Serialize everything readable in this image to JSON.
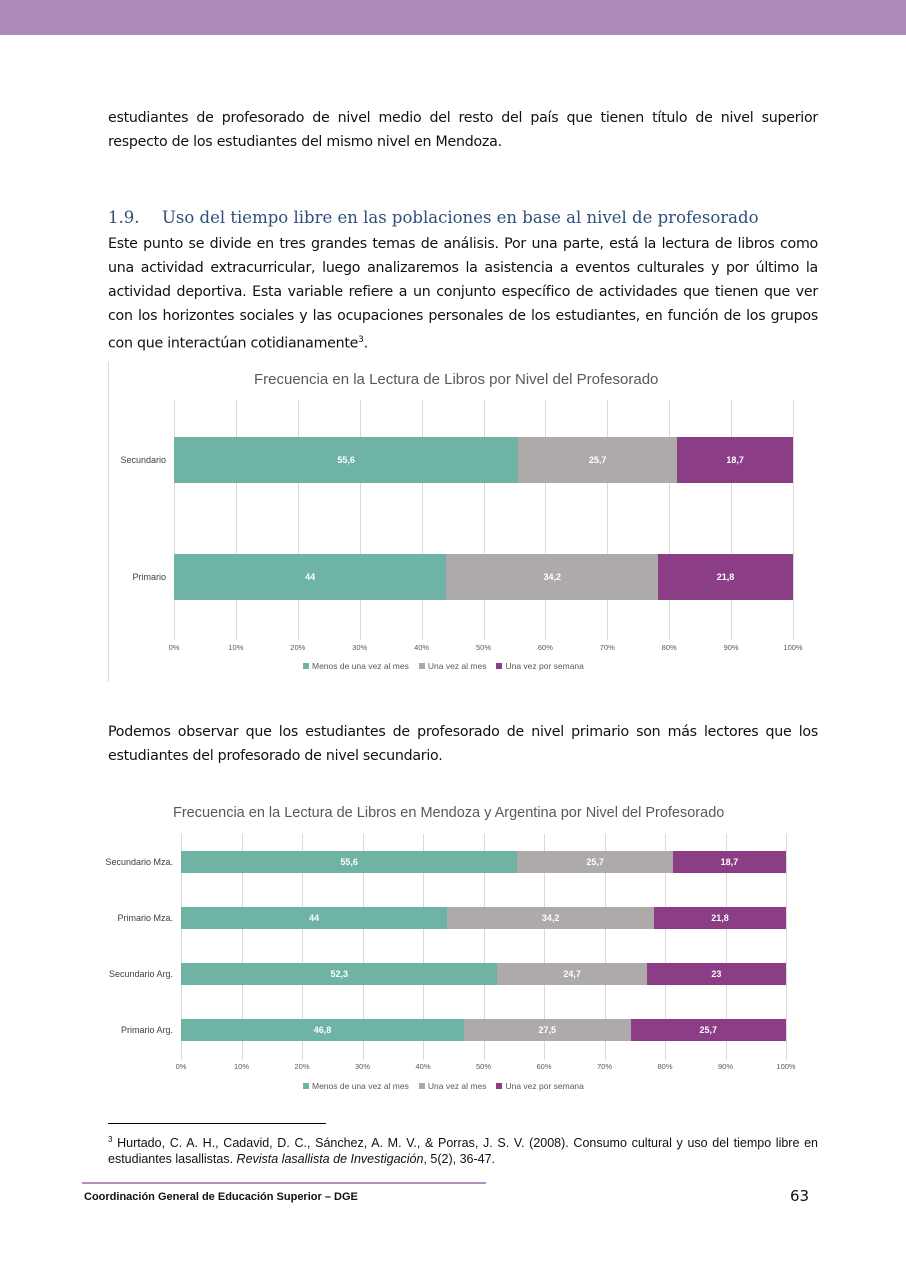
{
  "intro_paragraph": "estudiantes de profesorado de nivel medio del resto del país que tienen título de nivel superior respecto de los estudiantes del mismo nivel en Mendoza.",
  "section": {
    "number": "1.9.",
    "title": "Uso del tiempo libre en las poblaciones en base al nivel de profesorado",
    "paragraph": "Este punto se divide en tres grandes temas de análisis. Por una parte, está la lectura de libros como una actividad extracurricular, luego analizaremos la asistencia a eventos culturales y por último la actividad deportiva. Esta variable refiere a un conjunto específico de actividades que tienen que ver con los horizontes sociales y las ocupaciones personales de los estudiantes, en función de los grupos con que interactúan cotidianamente",
    "footnote_ref": "3"
  },
  "middle_paragraph": "Podemos observar que los estudiantes de profesorado de nivel primario son más lectores que los estudiantes del profesorado de nivel secundario.",
  "chart_data": [
    {
      "type": "bar",
      "orientation": "horizontal",
      "stacked": true,
      "title": "Frecuencia en la Lectura de Libros por Nivel del Profesorado",
      "categories": [
        "Secundario",
        "Primario"
      ],
      "series": [
        {
          "name": "Menos de una vez al mes",
          "color": "#6fb3a5",
          "values": [
            55.6,
            44
          ]
        },
        {
          "name": "Una vez al mes",
          "color": "#aeaaaa",
          "values": [
            25.7,
            34.2
          ]
        },
        {
          "name": "Una vez por semana",
          "color": "#8b3d86",
          "values": [
            18.7,
            21.8
          ]
        }
      ],
      "data_labels": [
        [
          "55,6",
          "44"
        ],
        [
          "25,7",
          "34,2"
        ],
        [
          "18,7",
          "21,8"
        ]
      ],
      "xlim": [
        0,
        100
      ],
      "xticks": [
        "0%",
        "10%",
        "20%",
        "30%",
        "40%",
        "50%",
        "60%",
        "70%",
        "80%",
        "90%",
        "100%"
      ],
      "grid": true,
      "legend": "bottom"
    },
    {
      "type": "bar",
      "orientation": "horizontal",
      "stacked": true,
      "title": "Frecuencia en la Lectura de Libros en Mendoza y Argentina por Nivel del Profesorado",
      "categories": [
        "Secundario Mza.",
        "Primario Mza.",
        "Secundario Arg.",
        "Primario Arg."
      ],
      "series": [
        {
          "name": "Menos de una vez al mes",
          "color": "#6fb3a5",
          "values": [
            55.6,
            44,
            52.3,
            46.8
          ]
        },
        {
          "name": "Una vez al mes",
          "color": "#aeaaaa",
          "values": [
            25.7,
            34.2,
            24.7,
            27.5
          ]
        },
        {
          "name": "Una vez por semana",
          "color": "#8b3d86",
          "values": [
            18.7,
            21.8,
            23,
            25.7
          ]
        }
      ],
      "data_labels": [
        [
          "55,6",
          "44",
          "52,3",
          "46,8"
        ],
        [
          "25,7",
          "34,2",
          "24,7",
          "27,5"
        ],
        [
          "18,7",
          "21,8",
          "23",
          "25,7"
        ]
      ],
      "xlim": [
        0,
        100
      ],
      "xticks": [
        "0%",
        "10%",
        "20%",
        "30%",
        "40%",
        "50%",
        "60%",
        "70%",
        "80%",
        "90%",
        "100%"
      ],
      "grid": true,
      "legend": "bottom"
    }
  ],
  "footnote": {
    "marker": "3",
    "text_before": " Hurtado, C. A. H., Cadavid, D. C., Sánchez, A. M. V., & Porras, J. S. V. (2008). Consumo cultural y uso del tiempo libre en estudiantes lasallistas. ",
    "journal": "Revista lasallista de Investigación",
    "text_after": ", 5(2), 36-47."
  },
  "footer": {
    "left": "Coordinación General de Educación Superior – DGE",
    "page_number": "63"
  },
  "colors": {
    "header_bar": "#ad89bb",
    "heading": "#2f4f78"
  }
}
